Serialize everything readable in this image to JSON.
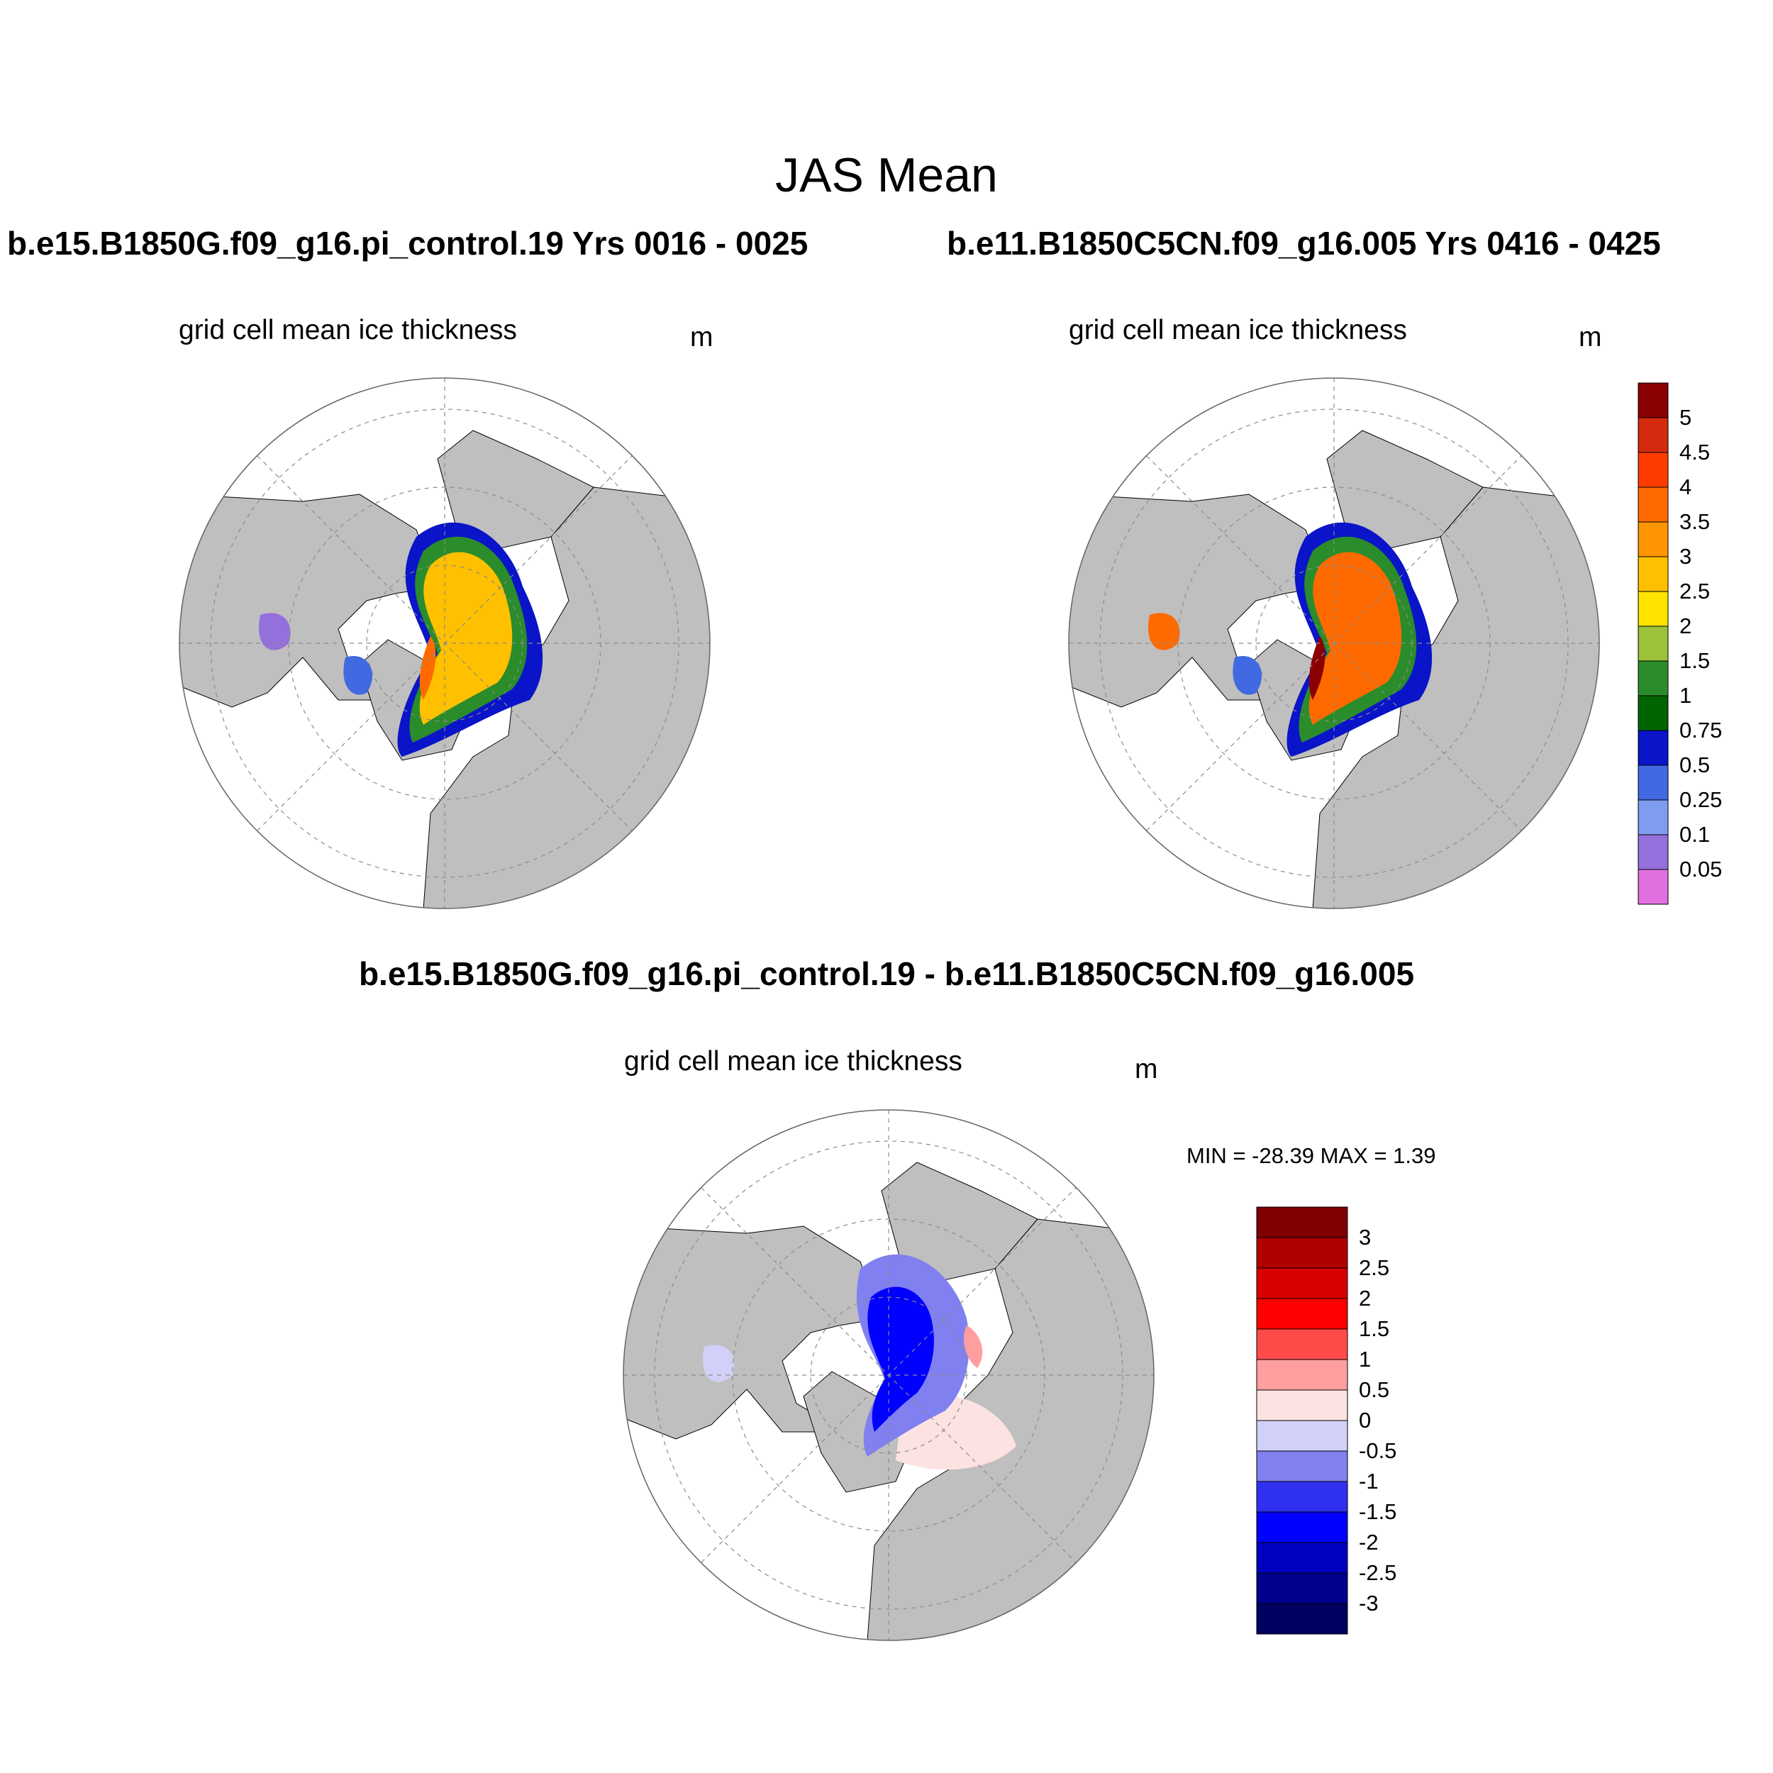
{
  "title": "JAS Mean",
  "panels": [
    {
      "case_title": "b.e15.B1850G.f09_g16.pi_control.19  Yrs 0016 - 0025",
      "variable": "grid cell mean ice thickness",
      "units": "m"
    },
    {
      "case_title": "b.e11.B1850C5CN.f09_g16.005  Yrs 0416 - 0425",
      "variable": "grid cell mean ice thickness",
      "units": "m"
    }
  ],
  "difference_panel": {
    "title": "b.e15.B1850G.f09_g16.pi_control.19 - b.e11.B1850C5CN.f09_g16.005",
    "variable": "grid cell mean ice thickness",
    "units": "m",
    "min_max": "MIN = -28.39 MAX =   1.39"
  },
  "colorbar_thickness": {
    "labels": [
      "5",
      "4.5",
      "4",
      "3.5",
      "3",
      "2.5",
      "2",
      "1.5",
      "1",
      "0.75",
      "0.5",
      "0.25",
      "0.1",
      "0.05"
    ],
    "colors": [
      "#8b0000",
      "#d42a0e",
      "#ff3c00",
      "#ff6a00",
      "#ff9500",
      "#ffc000",
      "#ffe200",
      "#9bc23a",
      "#2a8c2a",
      "#006400",
      "#0a14c8",
      "#4169e1",
      "#7f9df0",
      "#9370db",
      "#e070e0"
    ]
  },
  "colorbar_difference": {
    "labels": [
      "3",
      "2.5",
      "2",
      "1.5",
      "1",
      "0.5",
      "0",
      "-0.5",
      "-1",
      "-1.5",
      "-2",
      "-2.5",
      "-3"
    ],
    "colors": [
      "#800000",
      "#b00000",
      "#d80000",
      "#ff0000",
      "#ff4a4a",
      "#ff9e9e",
      "#fde2e2",
      "#d0d0f8",
      "#8080f0",
      "#3030f0",
      "#0000ff",
      "#0000c0",
      "#00008c",
      "#000060"
    ]
  },
  "map_colors": {
    "land": "#bfbfbf",
    "ocean": "#ffffff",
    "grid": "#8c8c8c"
  },
  "icons": [
    "polar-stereographic-map"
  ]
}
